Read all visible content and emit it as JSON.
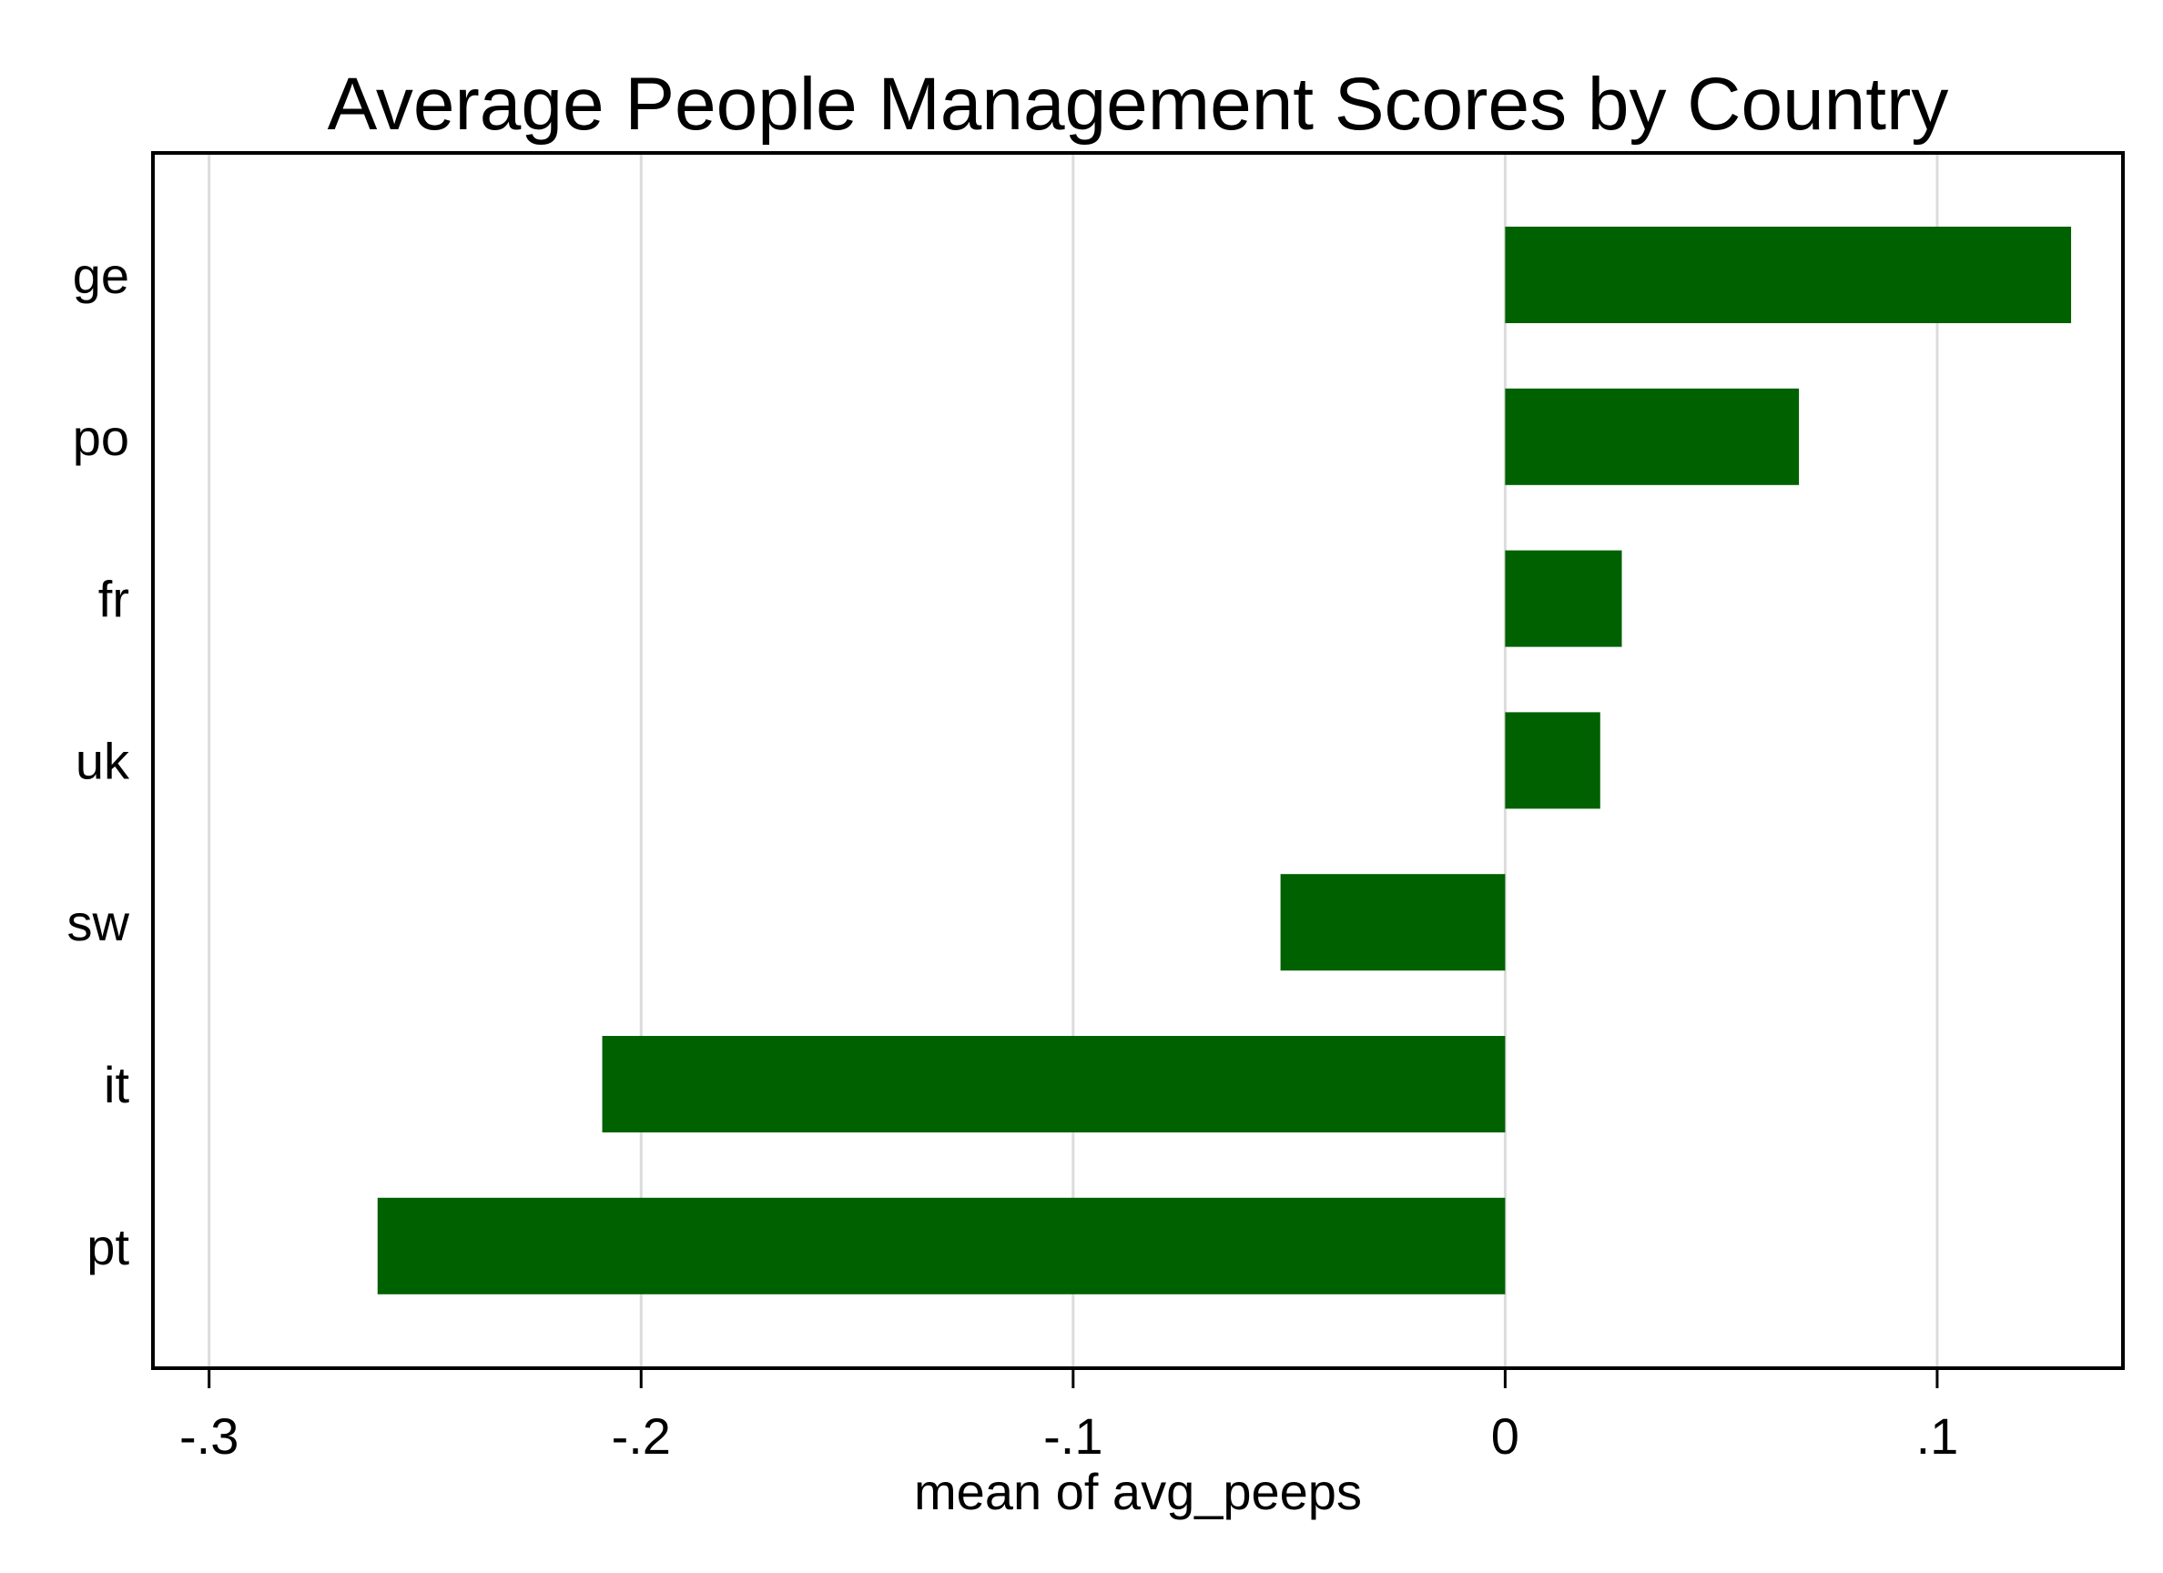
{
  "chart_data": {
    "type": "bar",
    "orientation": "horizontal",
    "title": "Average People Management Scores by Country",
    "xlabel": "mean of avg_peeps",
    "ylabel": "",
    "categories": [
      "ge",
      "po",
      "fr",
      "uk",
      "sw",
      "it",
      "pt"
    ],
    "series": [
      {
        "values": [
          0.131,
          0.068,
          0.027,
          0.022,
          -0.052,
          -0.209,
          -0.261
        ]
      }
    ],
    "xlim": [
      -0.313,
      0.143
    ],
    "xticks": [
      {
        "value": -0.3,
        "label": "-.3"
      },
      {
        "value": -0.2,
        "label": "-.2"
      },
      {
        "value": -0.1,
        "label": "-.1"
      },
      {
        "value": 0,
        "label": "0"
      },
      {
        "value": 0.1,
        "label": ".1"
      }
    ],
    "grid": "vertical",
    "legend": "none",
    "bar_color": "#006100",
    "grid_color": "#dcdcdc",
    "axis_color": "#000000"
  }
}
